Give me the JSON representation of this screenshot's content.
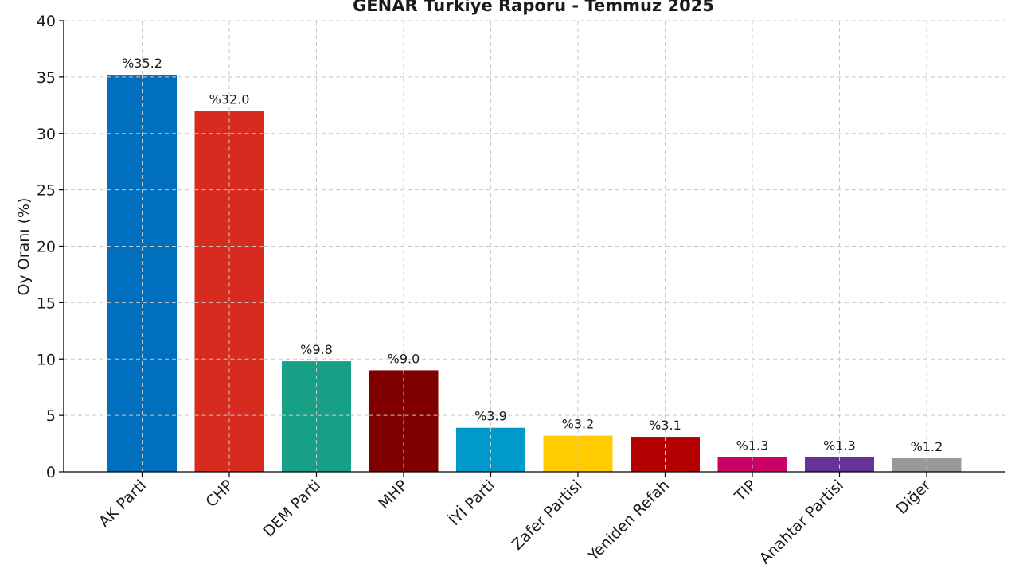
{
  "chart_data": {
    "type": "bar",
    "title": "GENAR Türkiye Raporu - Temmuz 2025",
    "xlabel": "",
    "ylabel": "Oy Oranı (%)",
    "ylim": [
      0,
      40
    ],
    "yticks": [
      0,
      5,
      10,
      15,
      20,
      25,
      30,
      35,
      40
    ],
    "grid": true,
    "categories": [
      "AK Parti",
      "CHP",
      "DEM Parti",
      "MHP",
      "İYİ Parti",
      "Zafer Partisi",
      "Yeniden Refah",
      "TİP",
      "Anahtar Partisi",
      "Diğer"
    ],
    "values": [
      35.2,
      32.0,
      9.8,
      9.0,
      3.9,
      3.2,
      3.1,
      1.3,
      1.3,
      1.2
    ],
    "data_labels": [
      "%35.2",
      "%32.0",
      "%9.8",
      "%9.0",
      "%3.9",
      "%3.2",
      "%3.1",
      "%1.3",
      "%1.3",
      "%1.2"
    ],
    "colors": [
      "#0070BE",
      "#D72B20",
      "#17A086",
      "#800000",
      "#0099CC",
      "#FFCC00",
      "#B40000",
      "#CC0066",
      "#663399",
      "#999999"
    ]
  }
}
